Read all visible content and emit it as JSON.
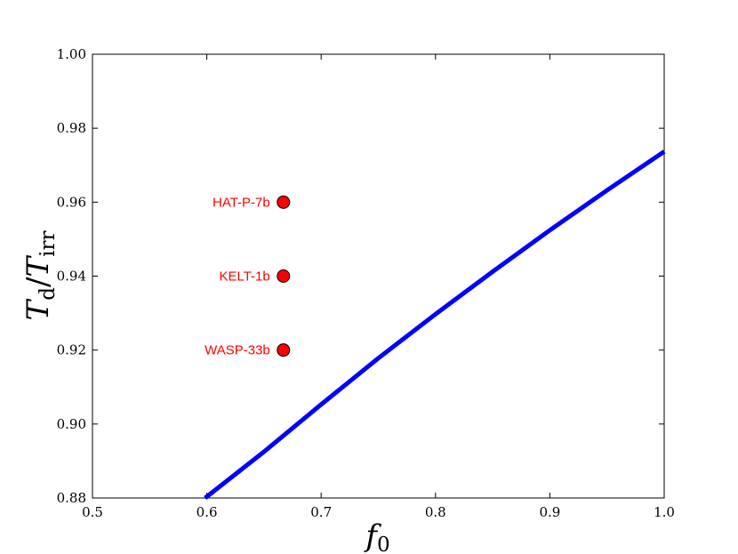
{
  "chart_data": {
    "type": "line",
    "title": "",
    "xlabel": {
      "main": "f",
      "sub": "0"
    },
    "ylabel": {
      "main": "T",
      "sub": "d",
      "slash": "/",
      "main2": "T",
      "sub2": "irr"
    },
    "xlim": [
      0.5,
      1.0
    ],
    "ylim": [
      0.88,
      1.0
    ],
    "xticks": [
      "0.5",
      "0.6",
      "0.7",
      "0.8",
      "0.9",
      "1.0"
    ],
    "yticks": [
      "0.88",
      "0.90",
      "0.92",
      "0.94",
      "0.96",
      "0.98",
      "1.00"
    ],
    "grid": false,
    "series": [
      {
        "color": "#0000ff",
        "x": [
          0.5985,
          0.65,
          0.7,
          0.75,
          0.8,
          0.85,
          0.9,
          0.95,
          1.0
        ],
        "y": [
          0.88,
          0.8925,
          0.9053,
          0.9178,
          0.9297,
          0.9412,
          0.9524,
          0.9632,
          0.9737
        ]
      }
    ],
    "points": [
      {
        "label": "HAT-P-7b",
        "x": 0.667,
        "y": 0.96,
        "color": "#ff0000"
      },
      {
        "label": "KELT-1b",
        "x": 0.667,
        "y": 0.94,
        "color": "#ff0000"
      },
      {
        "label": "WASP-33b",
        "x": 0.667,
        "y": 0.92,
        "color": "#ff0000"
      }
    ]
  }
}
